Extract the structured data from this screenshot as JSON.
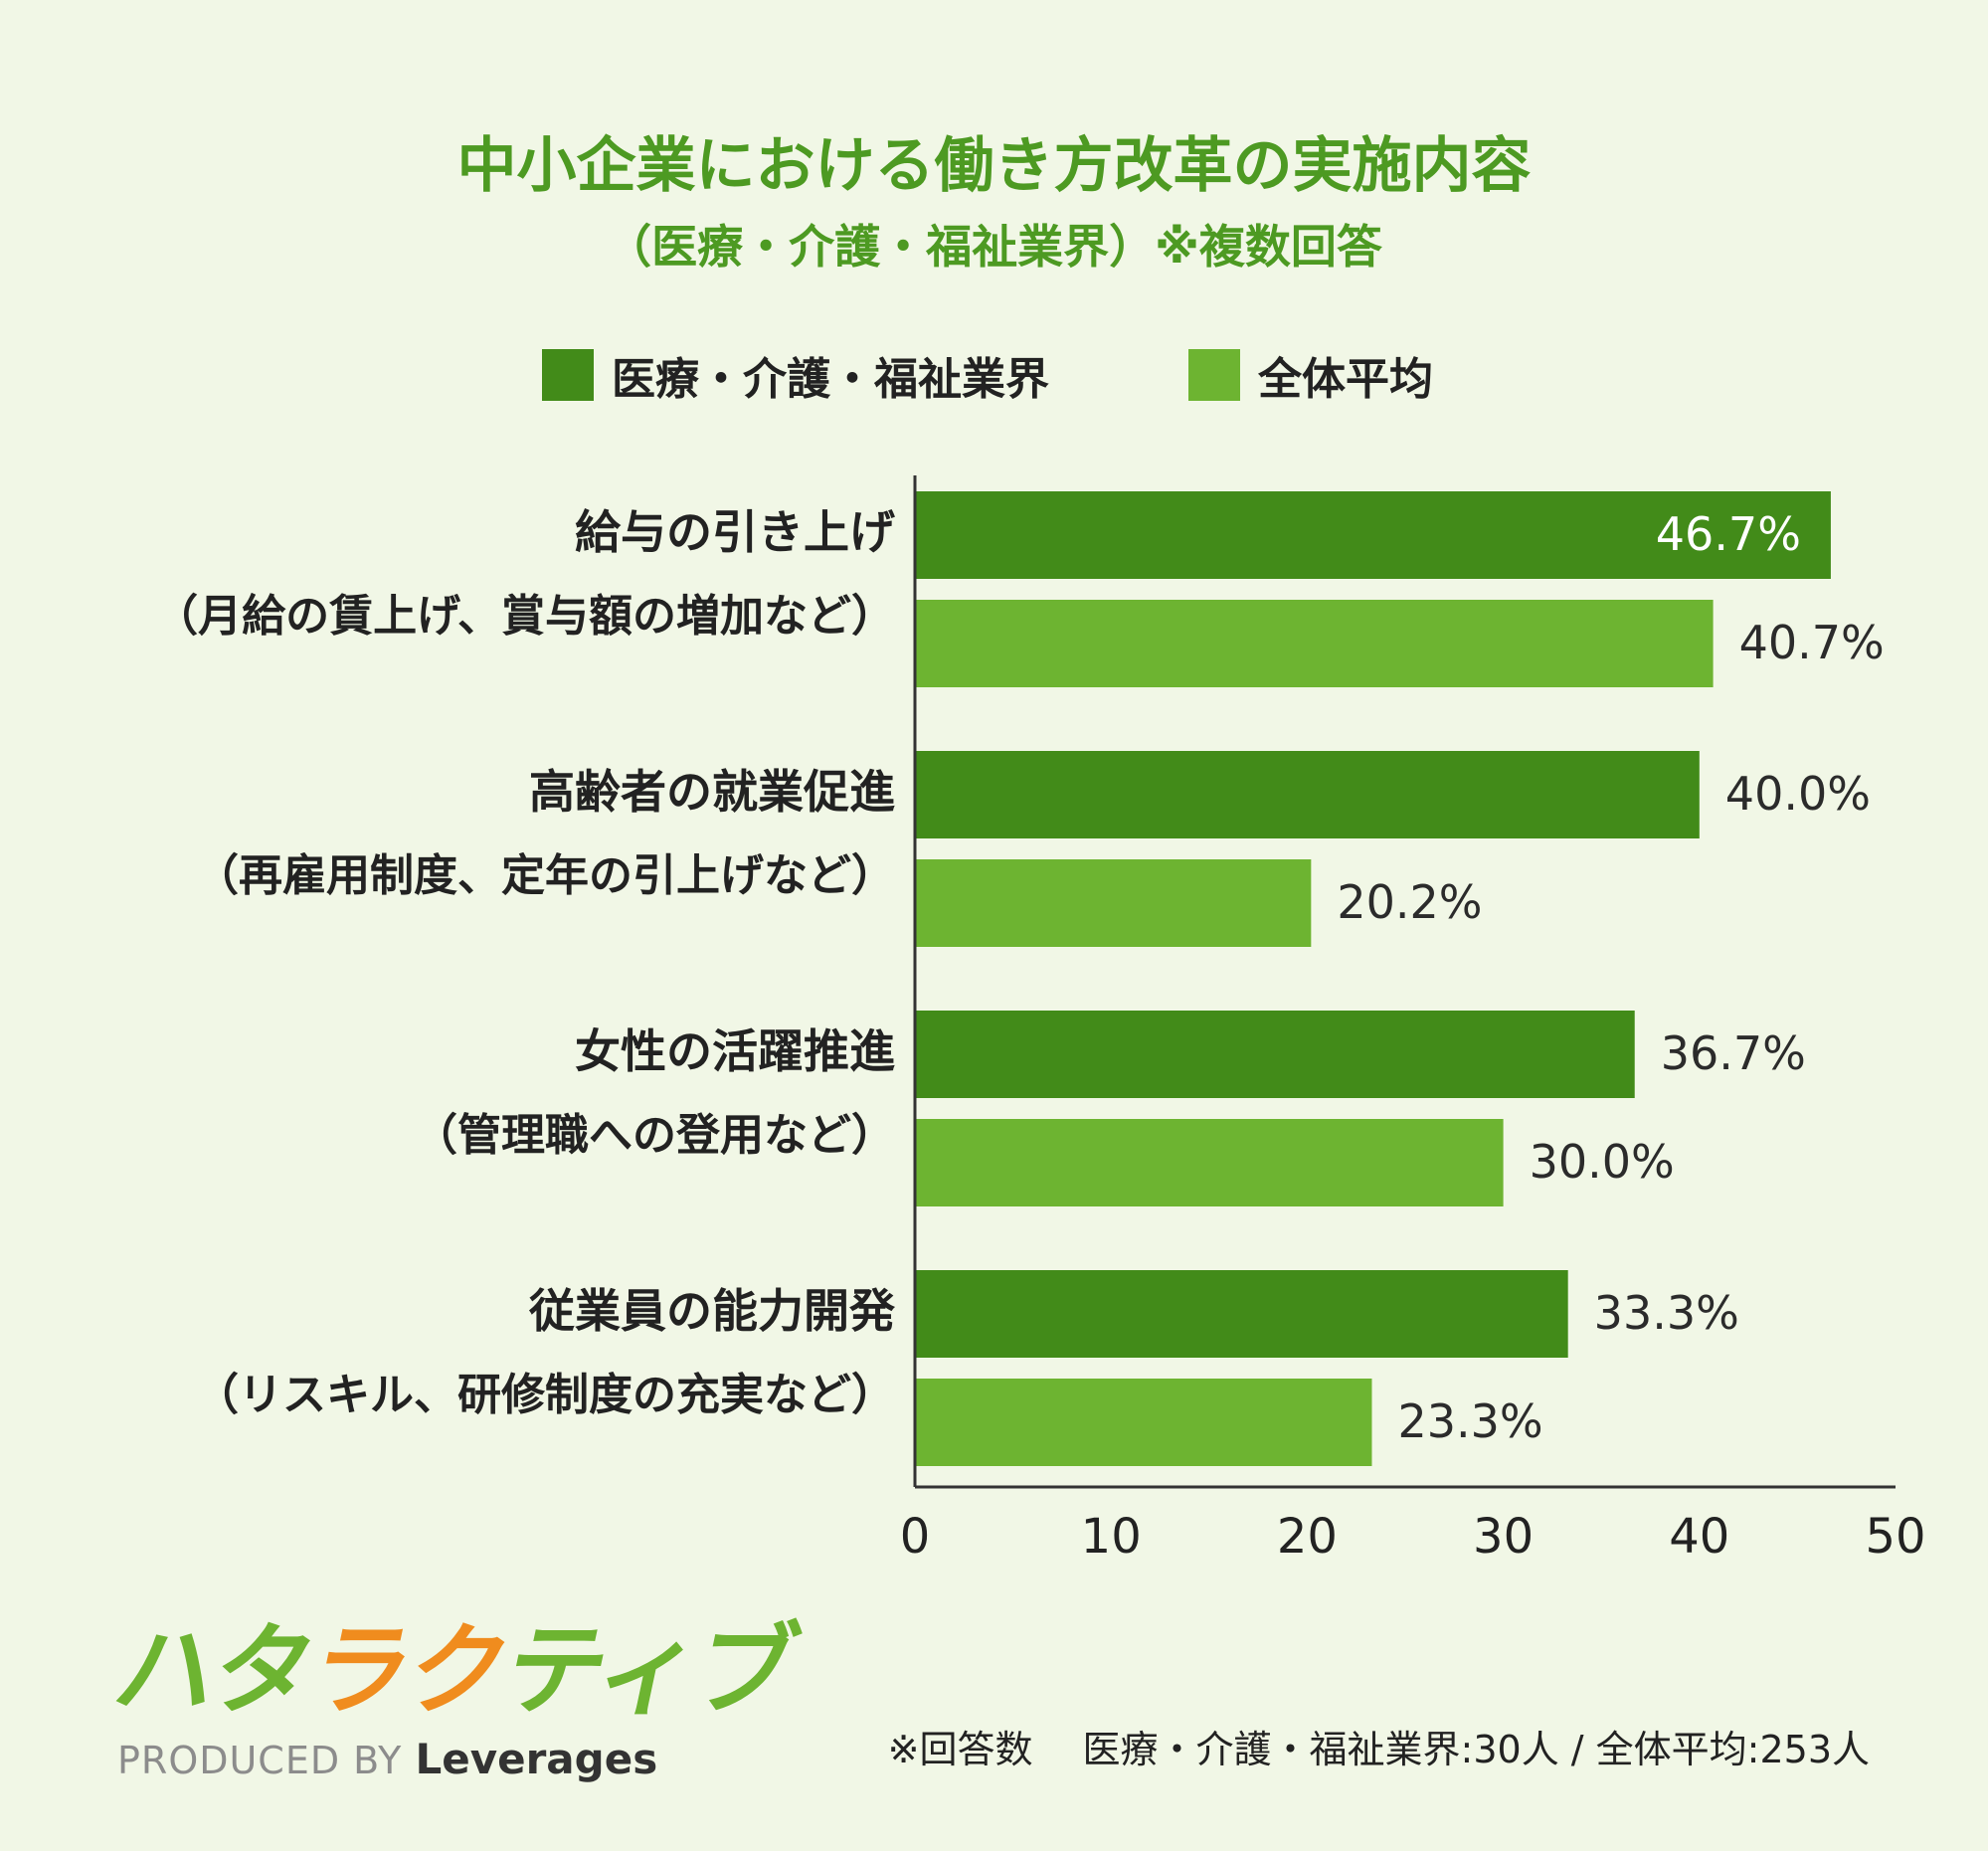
{
  "chart_data": {
    "type": "bar",
    "orientation": "horizontal",
    "title": "中小企業における働き方改革の実施内容",
    "subtitle": "（医療・介護・福祉業界）※複数回答",
    "categories": [
      [
        "給与の引き上げ",
        "（月給の賃上げ、賞与額の増加など）"
      ],
      [
        "高齢者の就業促進",
        "（再雇用制度、定年の引上げなど）"
      ],
      [
        "女性の活躍推進",
        "（管理職への登用など）"
      ],
      [
        "従業員の能力開発",
        "（リスキル、研修制度の充実など）"
      ]
    ],
    "series": [
      {
        "name": "医療・介護・福祉業界",
        "color": "#428b19",
        "values": [
          46.7,
          40.0,
          36.7,
          33.3
        ],
        "labels": [
          "46.7%",
          "40.0%",
          "36.7%",
          "33.3%"
        ]
      },
      {
        "name": "全体平均",
        "color": "#6db431",
        "values": [
          40.7,
          20.2,
          30.0,
          23.3
        ],
        "labels": [
          "40.7%",
          "20.2%",
          "30.0%",
          "23.3%"
        ]
      }
    ],
    "xlim": [
      0,
      50
    ],
    "xticks": [
      "0",
      "10",
      "20",
      "30",
      "40",
      "50"
    ],
    "grid": false,
    "legend_position": "top"
  },
  "logo": {
    "kana": [
      "ハ",
      "タ",
      "ラ",
      "ク",
      "テ",
      "ィ",
      "ブ"
    ],
    "kana_colors": [
      "#6db431",
      "#6db431",
      "#f08c1e",
      "#f08c1e",
      "#6db431",
      "#6db431",
      "#6db431"
    ],
    "produced_by": "PRODUCED BY",
    "brand": "Leverages"
  },
  "footnote": "※回答数　 医療・介護・福祉業界:30人 / 全体平均:253人"
}
